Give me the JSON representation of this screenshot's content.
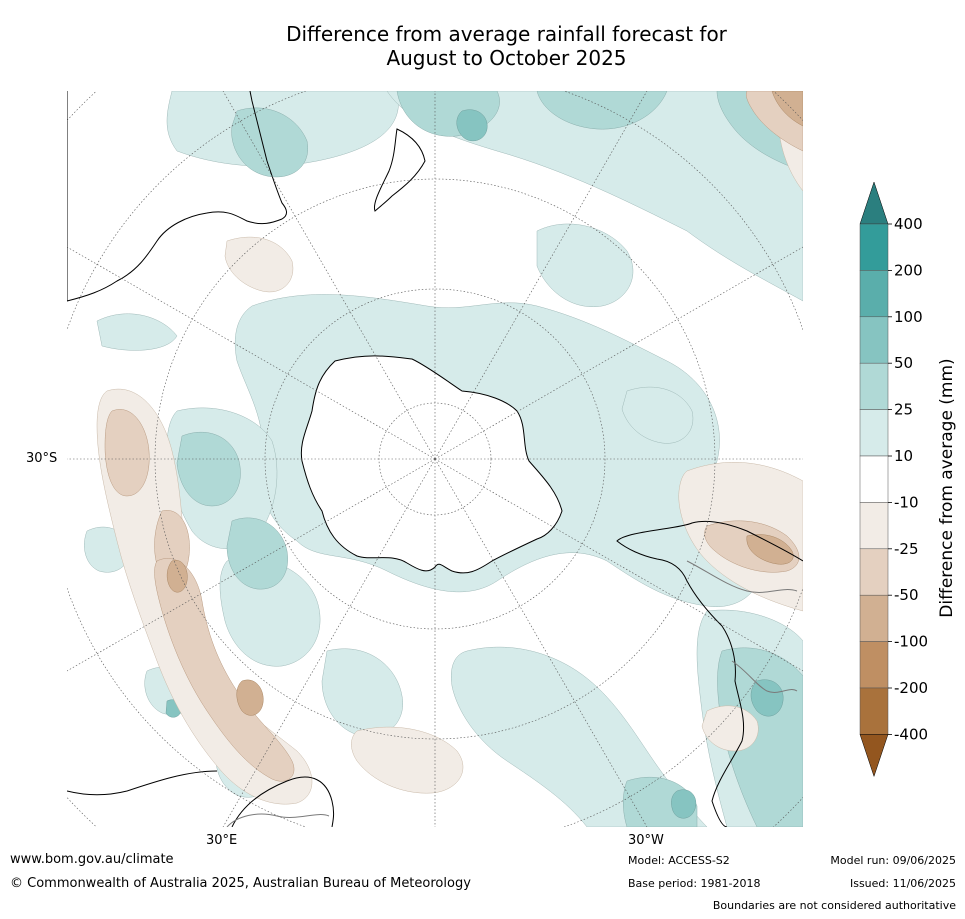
{
  "title_line1": "Difference from average rainfall forecast for",
  "title_line2": "August to October 2025",
  "graticule_labels": {
    "lat": "30°S",
    "lon_east": "30°E",
    "lon_west": "30°W"
  },
  "colorbar": {
    "title": "Difference from average (mm)",
    "ticks": [
      "400",
      "200",
      "100",
      "50",
      "25",
      "10",
      "-10",
      "-25",
      "-50",
      "-100",
      "-200",
      "-400"
    ],
    "colors": [
      "#2b7f7f",
      "#339c9a",
      "#5aaeab",
      "#86c4c1",
      "#b0d9d6",
      "#d6ebea",
      "#ffffff",
      "#f2ece6",
      "#e4d0c0",
      "#d1b092",
      "#bf8f63",
      "#a9723c",
      "#93561f"
    ]
  },
  "colors": {
    "coast": "#000000",
    "border": "#7a7a7a",
    "grid": "#555555"
  },
  "footer": {
    "url": "www.bom.gov.au/climate",
    "copyright": "© Commonwealth of Australia 2025, Australian Bureau of Meteorology",
    "model": "Model: ACCESS-S2",
    "base_period": "Base period: 1981-2018",
    "model_run": "Model run: 09/06/2025",
    "issued": "Issued: 11/06/2025",
    "disclaimer": "Boundaries are not considered authoritative"
  }
}
